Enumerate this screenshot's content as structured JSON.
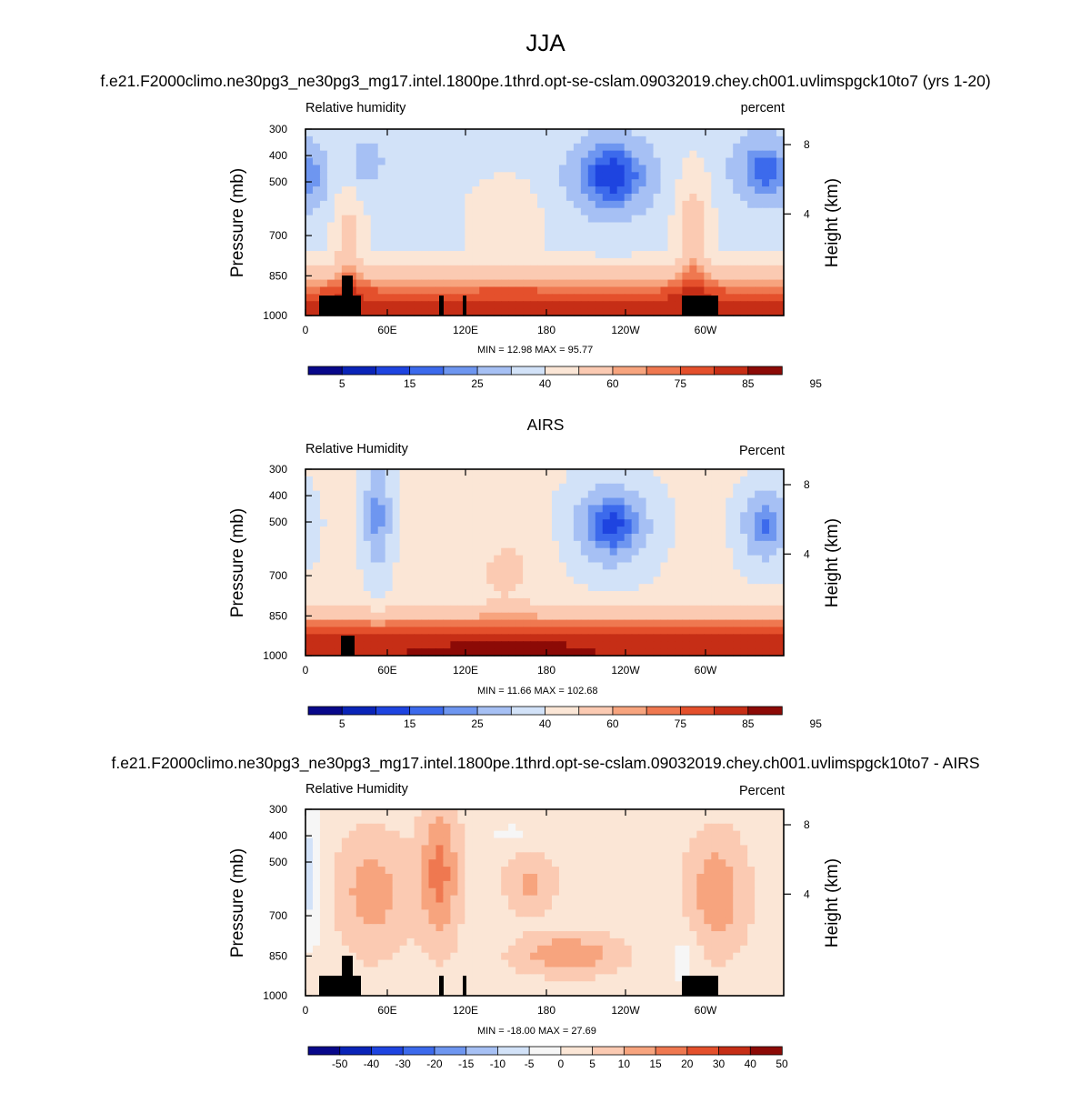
{
  "page": {
    "title": "JJA",
    "case_title": "f.e21.F2000climo.ne30pg3_ne30pg3_mg17.intel.1800pe.1thrd.opt-se-cslam.09032019.chey.ch001.uvlimspgck10to7 (yrs 1-20)"
  },
  "colors": {
    "abs_palette": [
      "#08088a",
      "#0a24b8",
      "#1e44e0",
      "#3c6aec",
      "#6e96f0",
      "#a6c0f4",
      "#d2e2f8",
      "#fbe6d6",
      "#fbcab2",
      "#f7a47e",
      "#ef7850",
      "#e4502c",
      "#c62e16",
      "#8c0a06"
    ],
    "diff_palette": [
      "#08088a",
      "#0a24b8",
      "#1e44e0",
      "#3c6aec",
      "#6e96f0",
      "#a6c0f4",
      "#d2e2f8",
      "#f6f6f6",
      "#fbe6d6",
      "#fbcab2",
      "#f7a47e",
      "#ef7850",
      "#e4502c",
      "#c62e16",
      "#8c0a06"
    ]
  },
  "chart_data": [
    {
      "type": "heatmap",
      "title": "",
      "left_label": "Relative humidity",
      "right_label": "percent",
      "ylabel": "Pressure (mb)",
      "ylabel_right": "Height (km)",
      "xlabel": "",
      "x_ticks": [
        "0",
        "60E",
        "120E",
        "180",
        "120W",
        "60W"
      ],
      "y_ticks": [
        "300",
        "400",
        "500",
        "700",
        "850",
        "1000"
      ],
      "y_ticks_right": [
        "8",
        "4"
      ],
      "ylim": [
        1000,
        300
      ],
      "minmax": "MIN = 12.98  MAX = 95.77",
      "colorbar_labels": [
        "5",
        "15",
        "25",
        "40",
        "60",
        "75",
        "85",
        "95"
      ],
      "min": 12.98,
      "max": 95.77
    },
    {
      "type": "heatmap",
      "title": "AIRS",
      "left_label": "Relative Humidity",
      "right_label": "Percent",
      "ylabel": "Pressure (mb)",
      "ylabel_right": "Height (km)",
      "xlabel": "",
      "x_ticks": [
        "0",
        "60E",
        "120E",
        "180",
        "120W",
        "60W"
      ],
      "y_ticks": [
        "300",
        "400",
        "500",
        "700",
        "850",
        "1000"
      ],
      "y_ticks_right": [
        "8",
        "4"
      ],
      "ylim": [
        1000,
        300
      ],
      "minmax": "MIN = 11.66  MAX = 102.68",
      "colorbar_labels": [
        "5",
        "15",
        "25",
        "40",
        "60",
        "75",
        "85",
        "95"
      ],
      "min": 11.66,
      "max": 102.68
    },
    {
      "type": "heatmap",
      "title": "f.e21.F2000climo.ne30pg3_ne30pg3_mg17.intel.1800pe.1thrd.opt-se-cslam.09032019.chey.ch001.uvlimspgck10to7 - AIRS",
      "left_label": "Relative Humidity",
      "right_label": "Percent",
      "ylabel": "Pressure (mb)",
      "ylabel_right": "Height (km)",
      "xlabel": "",
      "x_ticks": [
        "0",
        "60E",
        "120E",
        "180",
        "120W",
        "60W"
      ],
      "y_ticks": [
        "300",
        "400",
        "500",
        "700",
        "850",
        "1000"
      ],
      "y_ticks_right": [
        "8",
        "4"
      ],
      "ylim": [
        1000,
        300
      ],
      "minmax": "MIN = -18.00  MAX = 27.69",
      "colorbar_labels": [
        "-50",
        "-40",
        "-30",
        "-20",
        "-15",
        "-10",
        "-5",
        "0",
        "5",
        "10",
        "15",
        "20",
        "30",
        "40",
        "50"
      ],
      "min": -18.0,
      "max": 27.69
    }
  ]
}
